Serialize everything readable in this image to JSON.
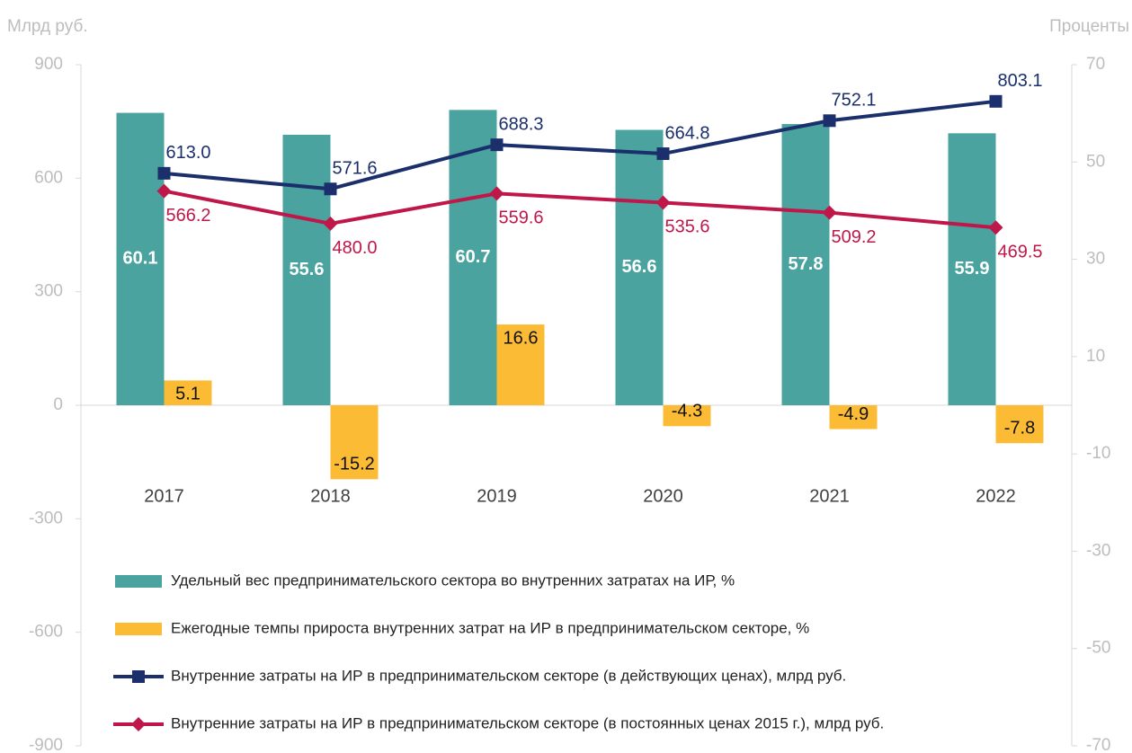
{
  "chart_data": {
    "type": "combo",
    "ylabel": "Млрд руб.",
    "y2label": "Проценты",
    "categories": [
      "2017",
      "2018",
      "2019",
      "2020",
      "2021",
      "2022"
    ],
    "ylim": [
      -900,
      900
    ],
    "yticks": [
      -900,
      -600,
      -300,
      0,
      300,
      600,
      900
    ],
    "y2lim": [
      -70,
      70
    ],
    "y2ticks": [
      -70,
      -50,
      -30,
      -10,
      10,
      30,
      50,
      70
    ],
    "series": [
      {
        "name": "Удельный вес предпринимательского  сектора во внутренних затратах на ИР, %",
        "type": "bar",
        "axis": "y2",
        "color": "#4aa39e",
        "values": [
          60.1,
          55.6,
          60.7,
          56.6,
          57.8,
          55.9
        ]
      },
      {
        "name": "Ежегодные темпы прироста внутренних затрат на ИР в предпринимательском секторе, %",
        "type": "bar",
        "axis": "y2",
        "color": "#fbbb35",
        "values": [
          5.1,
          -15.2,
          16.6,
          -4.3,
          -4.9,
          -7.8
        ]
      },
      {
        "name": "Внутренние затраты на ИР в предпринимательском секторе (в действующих ценах), млрд руб.",
        "type": "line",
        "color": "#1a2f6b",
        "marker": "square",
        "values": [
          613.0,
          571.6,
          688.3,
          664.8,
          752.1,
          803.1
        ],
        "value_labels": [
          "613.0",
          "571.6",
          "688.3",
          "664.8",
          "752.1",
          "803.1"
        ]
      },
      {
        "name": "Внутренние затраты на ИР в предпринимательском секторе (в постоянных ценах 2015 г.), млрд руб.",
        "type": "line",
        "color": "#c0174a",
        "marker": "diamond",
        "values": [
          566.2,
          480.0,
          559.6,
          535.6,
          509.2,
          469.5
        ],
        "value_labels": [
          "566.2",
          "480.0",
          "559.6",
          "535.6",
          "509.2",
          "469.5"
        ]
      }
    ]
  }
}
